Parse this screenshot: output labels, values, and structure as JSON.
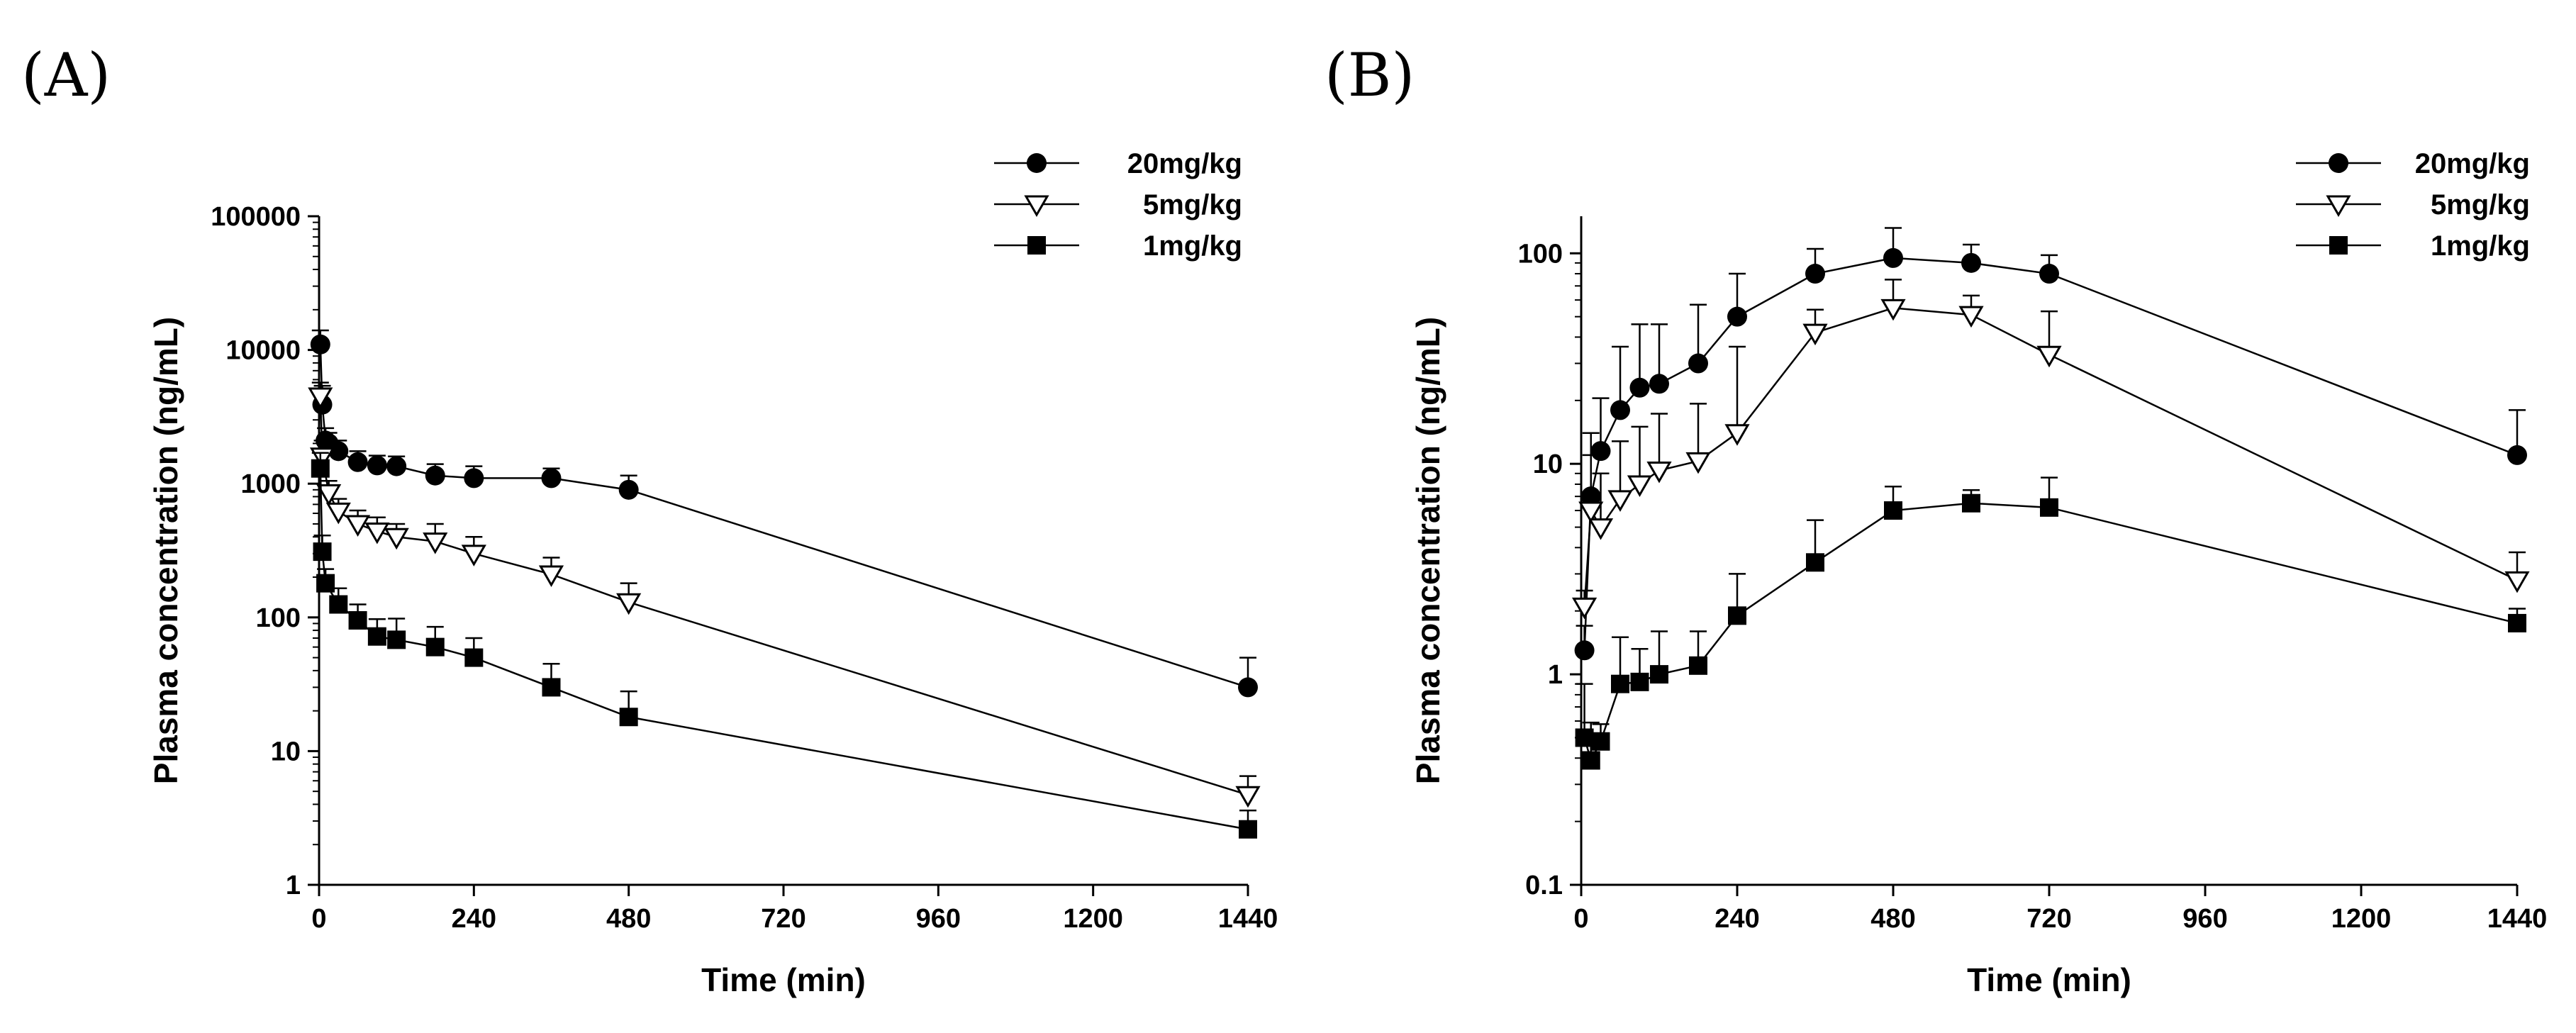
{
  "chart_data": [
    {
      "panel": "(A)",
      "type": "line",
      "xlabel": "Time (min)",
      "ylabel": "Plasma concentration (ng/mL)",
      "yscale": "log",
      "xlim": [
        0,
        1440
      ],
      "ylim": [
        1,
        100000
      ],
      "x_ticks": [
        "0",
        "240",
        "480",
        "720",
        "960",
        "1200",
        "1440"
      ],
      "y_ticks": [
        "1",
        "10",
        "100",
        "1000",
        "10000",
        "100000"
      ],
      "legend_position": "top-right",
      "grid": false,
      "series": [
        {
          "name": "20mg/kg",
          "marker": "filled-circle",
          "points": [
            {
              "x": 2,
              "y": 11000,
              "err": 3000
            },
            {
              "x": 5,
              "y": 3900,
              "err": 1500
            },
            {
              "x": 10,
              "y": 2100,
              "err": 500
            },
            {
              "x": 15,
              "y": 2000,
              "err": 400
            },
            {
              "x": 30,
              "y": 1750,
              "err": 350
            },
            {
              "x": 60,
              "y": 1450,
              "err": 300
            },
            {
              "x": 90,
              "y": 1370,
              "err": 250
            },
            {
              "x": 120,
              "y": 1350,
              "err": 250
            },
            {
              "x": 180,
              "y": 1150,
              "err": 250
            },
            {
              "x": 240,
              "y": 1100,
              "err": 250
            },
            {
              "x": 360,
              "y": 1100,
              "err": 200
            },
            {
              "x": 480,
              "y": 900,
              "err": 250
            },
            {
              "x": 1440,
              "y": 30,
              "err": 20
            }
          ]
        },
        {
          "name": "5mg/kg",
          "marker": "open-triangle-down",
          "points": [
            {
              "x": 2,
              "y": 4500,
              "err": 1200
            },
            {
              "x": 5,
              "y": 1600,
              "err": 500
            },
            {
              "x": 15,
              "y": 850,
              "err": 200
            },
            {
              "x": 30,
              "y": 620,
              "err": 150
            },
            {
              "x": 60,
              "y": 500,
              "err": 130
            },
            {
              "x": 90,
              "y": 440,
              "err": 120
            },
            {
              "x": 120,
              "y": 400,
              "err": 100
            },
            {
              "x": 180,
              "y": 370,
              "err": 130
            },
            {
              "x": 240,
              "y": 300,
              "err": 100
            },
            {
              "x": 360,
              "y": 210,
              "err": 70
            },
            {
              "x": 480,
              "y": 130,
              "err": 50
            },
            {
              "x": 1440,
              "y": 4.7,
              "err": 1.8
            }
          ]
        },
        {
          "name": "1mg/kg",
          "marker": "filled-square",
          "points": [
            {
              "x": 2,
              "y": 1300,
              "err": 400
            },
            {
              "x": 5,
              "y": 310,
              "err": 100
            },
            {
              "x": 10,
              "y": 180,
              "err": 50
            },
            {
              "x": 30,
              "y": 125,
              "err": 40
            },
            {
              "x": 60,
              "y": 95,
              "err": 30
            },
            {
              "x": 90,
              "y": 72,
              "err": 25
            },
            {
              "x": 120,
              "y": 68,
              "err": 30
            },
            {
              "x": 180,
              "y": 60,
              "err": 25
            },
            {
              "x": 240,
              "y": 50,
              "err": 20
            },
            {
              "x": 360,
              "y": 30,
              "err": 15
            },
            {
              "x": 480,
              "y": 18,
              "err": 10
            },
            {
              "x": 1440,
              "y": 2.6,
              "err": 1
            }
          ]
        }
      ]
    },
    {
      "panel": "(B)",
      "type": "line",
      "xlabel": "Time (min)",
      "ylabel": "Plasma concentration (ng/mL)",
      "yscale": "log",
      "xlim": [
        0,
        1440
      ],
      "ylim": [
        0.1,
        150
      ],
      "x_ticks": [
        "0",
        "240",
        "480",
        "720",
        "960",
        "1200",
        "1440"
      ],
      "y_ticks": [
        "0.1",
        "1",
        "10",
        "100"
      ],
      "legend_position": "top-right",
      "grid": false,
      "series": [
        {
          "name": "20mg/kg",
          "marker": "filled-circle",
          "points": [
            {
              "x": 5,
              "y": 1.3,
              "err": 0.4
            },
            {
              "x": 15,
              "y": 7,
              "err": 7
            },
            {
              "x": 30,
              "y": 11.5,
              "err": 9
            },
            {
              "x": 60,
              "y": 18,
              "err": 18
            },
            {
              "x": 90,
              "y": 23,
              "err": 23
            },
            {
              "x": 120,
              "y": 24,
              "err": 22
            },
            {
              "x": 180,
              "y": 30,
              "err": 27
            },
            {
              "x": 240,
              "y": 50,
              "err": 30
            },
            {
              "x": 360,
              "y": 80,
              "err": 25
            },
            {
              "x": 480,
              "y": 95,
              "err": 37
            },
            {
              "x": 600,
              "y": 90,
              "err": 20
            },
            {
              "x": 720,
              "y": 80,
              "err": 18
            },
            {
              "x": 1440,
              "y": 11,
              "err": 7
            }
          ]
        },
        {
          "name": "5mg/kg",
          "marker": "open-triangle-down",
          "points": [
            {
              "x": 5,
              "y": 2.1,
              "err": 0.4
            },
            {
              "x": 15,
              "y": 6,
              "err": 5
            },
            {
              "x": 30,
              "y": 5,
              "err": 4
            },
            {
              "x": 60,
              "y": 6.8,
              "err": 6
            },
            {
              "x": 90,
              "y": 8,
              "err": 7
            },
            {
              "x": 120,
              "y": 9.3,
              "err": 8
            },
            {
              "x": 180,
              "y": 10.3,
              "err": 9
            },
            {
              "x": 240,
              "y": 14,
              "err": 22
            },
            {
              "x": 360,
              "y": 42,
              "err": 12
            },
            {
              "x": 480,
              "y": 55,
              "err": 20
            },
            {
              "x": 600,
              "y": 51,
              "err": 12
            },
            {
              "x": 720,
              "y": 33,
              "err": 20
            },
            {
              "x": 1440,
              "y": 2.8,
              "err": 1
            }
          ]
        },
        {
          "name": "1mg/kg",
          "marker": "filled-square",
          "points": [
            {
              "x": 5,
              "y": 0.5,
              "err": 0.4
            },
            {
              "x": 15,
              "y": 0.39,
              "err": 0.2
            },
            {
              "x": 30,
              "y": 0.48,
              "err": 0.1
            },
            {
              "x": 60,
              "y": 0.9,
              "err": 0.6
            },
            {
              "x": 90,
              "y": 0.92,
              "err": 0.4
            },
            {
              "x": 120,
              "y": 1,
              "err": 0.6
            },
            {
              "x": 180,
              "y": 1.1,
              "err": 0.5
            },
            {
              "x": 240,
              "y": 1.9,
              "err": 1.1
            },
            {
              "x": 360,
              "y": 3.4,
              "err": 2
            },
            {
              "x": 480,
              "y": 6,
              "err": 1.8
            },
            {
              "x": 600,
              "y": 6.5,
              "err": 1
            },
            {
              "x": 720,
              "y": 6.2,
              "err": 2.4
            },
            {
              "x": 1440,
              "y": 1.75,
              "err": 0.3
            }
          ]
        }
      ]
    }
  ]
}
